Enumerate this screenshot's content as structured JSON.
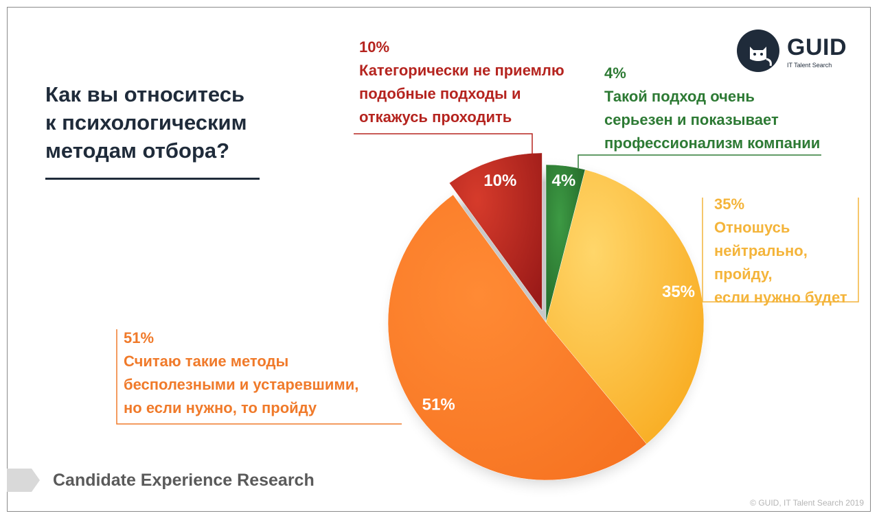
{
  "title": "Как вы относитесь к психологическим методам отбора?",
  "title_lines": [
    "Как вы относитесь",
    "к психологическим",
    "методам отбора?"
  ],
  "logo": {
    "name": "GUID",
    "subtitle": "IT Talent Search",
    "icon": "cat-icon"
  },
  "footer": {
    "label": "Candidate Experience Research",
    "copyright": "© GUID, IT Talent Search 2019"
  },
  "chart_data": {
    "type": "pie",
    "slices": [
      {
        "name": "Такой подход очень серьезен и показывает профессионализм компании",
        "value": 4,
        "label": "4%",
        "color": "#2e7d32",
        "caption_lines": [
          "Такой подход очень",
          "серьезен и показывает",
          "профессионализм компании"
        ]
      },
      {
        "name": "Отношусь нейтрально, пройду, если нужно будет",
        "value": 35,
        "label": "35%",
        "color": "#fbbf3a",
        "caption_lines": [
          "Отношусь",
          "нейтрально,",
          "пройду,",
          "если нужно будет"
        ]
      },
      {
        "name": "Считаю такие методы бесполезными и устаревшими, но если нужно, то пройду",
        "value": 51,
        "label": "51%",
        "color": "#f77f2a",
        "caption_lines": [
          "Считаю такие методы",
          "бесполезными и устаревшими,",
          "но если нужно, то пройду"
        ]
      },
      {
        "name": "Категорически не приемлю подобные подходы и откажусь проходить",
        "value": 10,
        "label": "10%",
        "color": "#c62828",
        "caption_lines": [
          "Категорически не приемлю",
          "подобные подходы и",
          "откажусь проходить"
        ]
      }
    ]
  }
}
